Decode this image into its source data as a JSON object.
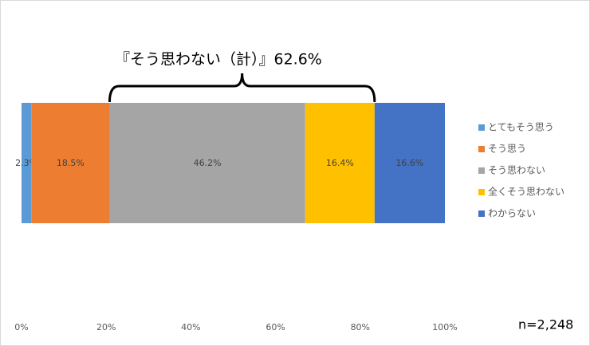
{
  "chart_data": {
    "type": "stacked-bar-horizontal",
    "annotation": "『そう思わない（計）』62.6%",
    "note": "n=2,248",
    "series": [
      {
        "name": "とてもそう思う",
        "color": "#5b9bd5",
        "values": [
          2.3
        ],
        "value_labels": [
          "2.3%"
        ]
      },
      {
        "name": "そう思う",
        "color": "#ed7d31",
        "values": [
          18.5
        ],
        "value_labels": [
          "18.5%"
        ]
      },
      {
        "name": "そう思わない",
        "color": "#a5a5a5",
        "values": [
          46.2
        ],
        "value_labels": [
          "46.2%"
        ]
      },
      {
        "name": "全くそう思わない",
        "color": "#ffc000",
        "values": [
          16.4
        ],
        "value_labels": [
          "16.4%"
        ]
      },
      {
        "name": "わからない",
        "color": "#4472c4",
        "values": [
          16.6
        ],
        "value_labels": [
          "16.6%"
        ]
      }
    ],
    "xlim": [
      0,
      100
    ],
    "xticks": [
      {
        "value": 0,
        "label": "0%"
      },
      {
        "value": 20,
        "label": "20%"
      },
      {
        "value": 40,
        "label": "40%"
      },
      {
        "value": 60,
        "label": "60%"
      },
      {
        "value": 80,
        "label": "80%"
      },
      {
        "value": 100,
        "label": "100%"
      }
    ],
    "legend": "right"
  }
}
